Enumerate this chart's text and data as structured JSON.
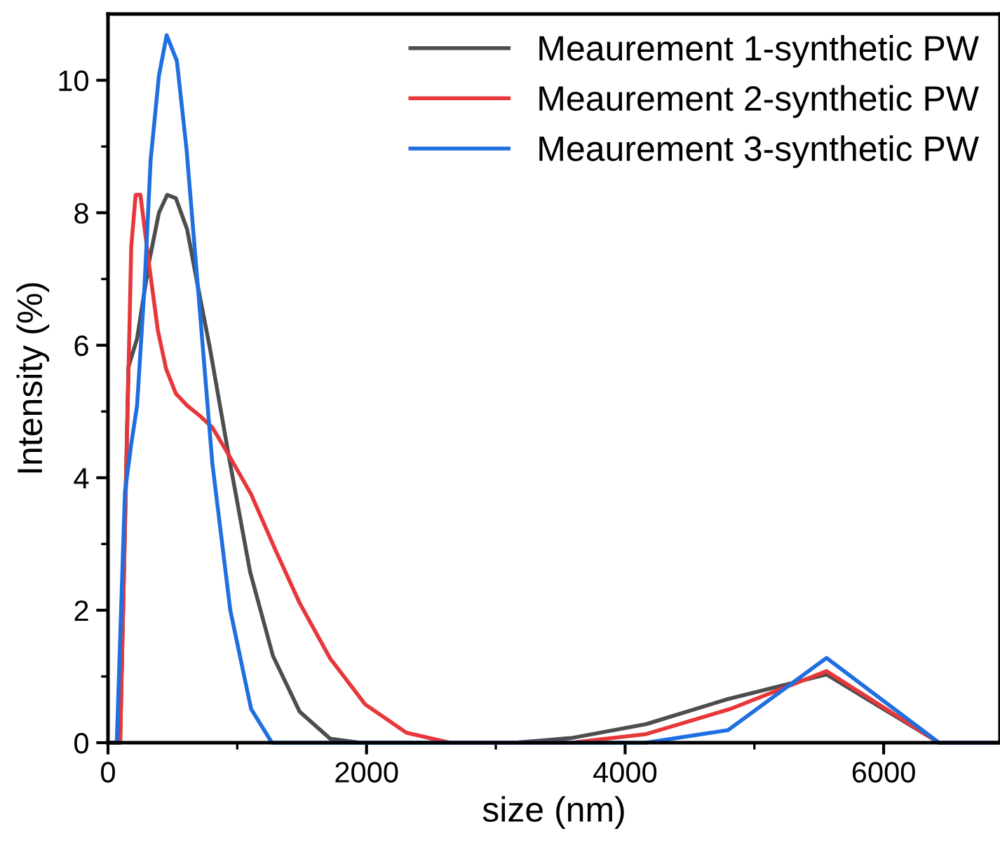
{
  "chart_data": {
    "type": "line",
    "xlabel": "size (nm)",
    "ylabel": "Intensity (%)",
    "xlim": [
      0,
      6900
    ],
    "ylim": [
      0,
      11
    ],
    "xticks": [
      0,
      {
        "value": 1000,
        "label": null
      },
      2000,
      {
        "value": 3000,
        "label": null
      },
      4000,
      {
        "value": 5000,
        "label": null
      },
      6000
    ],
    "yticks": [
      0,
      {
        "value": 1,
        "label": null
      },
      2,
      {
        "value": 3,
        "label": null
      },
      4,
      {
        "value": 5,
        "label": null
      },
      6,
      {
        "value": 7,
        "label": null
      },
      8,
      {
        "value": 9,
        "label": null
      },
      10
    ],
    "grid": false,
    "legend": "top right",
    "marker": "none",
    "line_style": "solid",
    "series": [
      {
        "name": "Meaurement 1-synthetic PW",
        "color": "#4d4d4d",
        "x": [
          0,
          94,
          158,
          225,
          319,
          394,
          458,
          525,
          612,
          694,
          788,
          938,
          1099,
          1276,
          1482,
          1719,
          1951,
          3145,
          3583,
          4163,
          4779,
          5558,
          6428,
          6900
        ],
        "values": [
          0,
          0,
          5.67,
          6.1,
          7.27,
          8.0,
          8.27,
          8.22,
          7.75,
          6.9,
          5.96,
          4.29,
          2.58,
          1.31,
          0.47,
          0.06,
          0,
          0,
          0.07,
          0.28,
          0.65,
          1.03,
          0,
          0
        ]
      },
      {
        "name": "Meaurement 2-synthetic PW",
        "color": "#e8373a",
        "x": [
          0,
          94,
          131,
          180,
          214,
          251,
          319,
          386,
          450,
          525,
          612,
          713,
          807,
          938,
          1107,
          1295,
          1482,
          1719,
          1989,
          2308,
          2645,
          3583,
          4163,
          4815,
          5558,
          6428,
          6900
        ],
        "values": [
          0,
          0,
          3.2,
          7.49,
          8.27,
          8.27,
          7.2,
          6.22,
          5.64,
          5.27,
          5.09,
          4.93,
          4.76,
          4.33,
          3.75,
          2.91,
          2.11,
          1.27,
          0.58,
          0.15,
          0,
          0,
          0.13,
          0.51,
          1.08,
          0,
          0
        ]
      },
      {
        "name": "Meaurement 3-synthetic PW",
        "color": "#1f6fe0",
        "x": [
          0,
          68,
          131,
          180,
          225,
          281,
          330,
          394,
          454,
          533,
          608,
          694,
          807,
          946,
          1107,
          1268,
          4163,
          4797,
          5558,
          6428,
          6900
        ],
        "values": [
          0,
          0,
          3.78,
          4.51,
          5.09,
          6.84,
          8.8,
          10.07,
          10.68,
          10.29,
          8.95,
          6.91,
          4.22,
          2.0,
          0.51,
          0,
          0,
          0.19,
          1.28,
          0,
          0
        ]
      }
    ]
  }
}
